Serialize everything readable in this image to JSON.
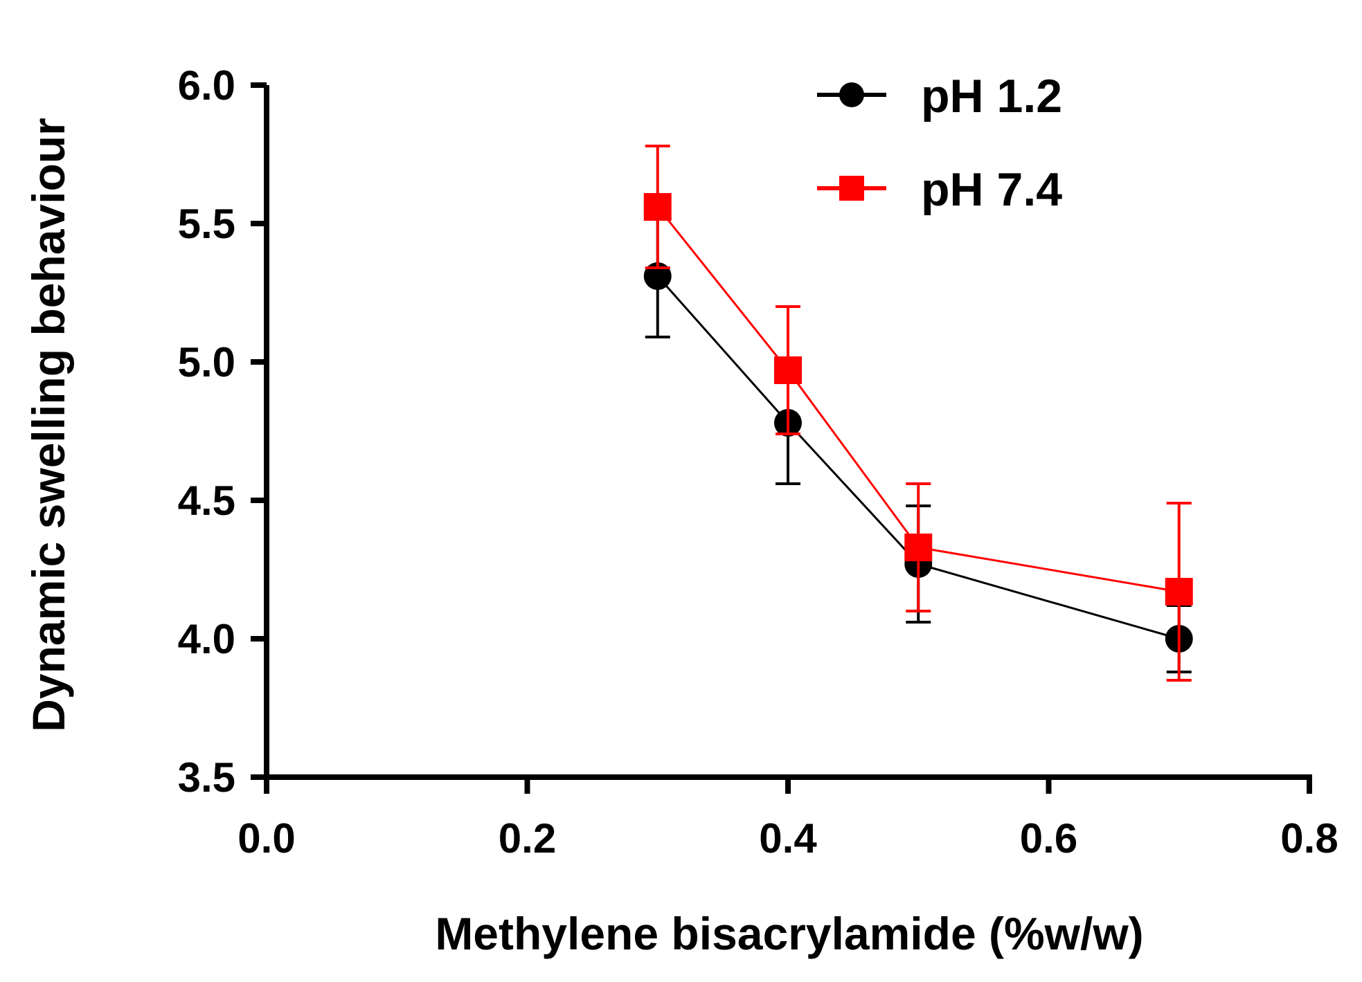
{
  "chart_data": {
    "type": "line",
    "title": "",
    "xlabel": "Methylene bisacrylamide (%w/w)",
    "ylabel": "Dynamic swelling behaviour",
    "xlim": [
      0.0,
      0.8
    ],
    "ylim": [
      3.5,
      6.0
    ],
    "xticks": [
      0.0,
      0.2,
      0.4,
      0.6,
      0.8
    ],
    "xtick_labels": [
      "0.0",
      "0.2",
      "0.4",
      "0.6",
      "0.8"
    ],
    "yticks": [
      3.5,
      4.0,
      4.5,
      5.0,
      5.5,
      6.0
    ],
    "ytick_labels": [
      "3.5",
      "4.0",
      "4.5",
      "5.0",
      "5.5",
      "6.0"
    ],
    "grid": false,
    "legend_position": "top-right",
    "series": [
      {
        "name": "pH 1.2",
        "color": "#000000",
        "marker": "circle",
        "x": [
          0.3,
          0.4,
          0.5,
          0.7
        ],
        "y": [
          5.31,
          4.78,
          4.27,
          4.0
        ],
        "error": [
          0.22,
          0.22,
          0.21,
          0.12
        ]
      },
      {
        "name": "pH 7.4",
        "color": "#ff0000",
        "marker": "square",
        "x": [
          0.3,
          0.4,
          0.5,
          0.7
        ],
        "y": [
          5.56,
          4.97,
          4.33,
          4.17
        ],
        "error": [
          0.22,
          0.23,
          0.23,
          0.32
        ]
      }
    ]
  }
}
